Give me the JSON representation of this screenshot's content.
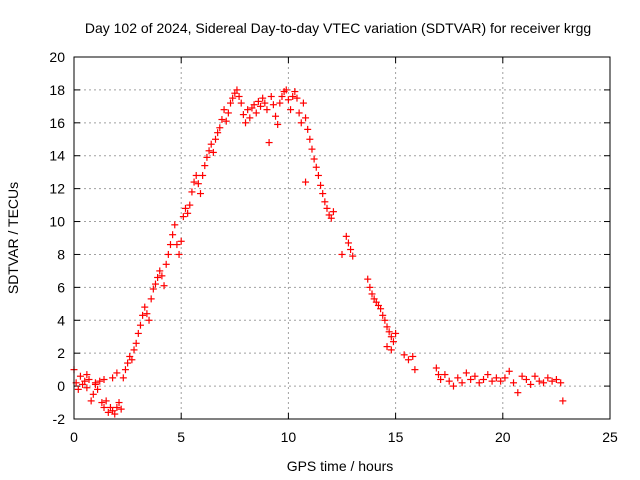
{
  "chart_data": {
    "type": "scatter",
    "title": "Day 102 of 2024, Sidereal Day-to-day VTEC variation (SDTVAR) for receiver krgg",
    "xlabel": "GPS time / hours",
    "ylabel": "SDTVAR / TECUs",
    "xlim": [
      0,
      25
    ],
    "ylim": [
      -2,
      20
    ],
    "xticks": [
      "0",
      "5",
      "10",
      "15",
      "20",
      "25"
    ],
    "yticks": [
      "-2",
      "0",
      "2",
      "4",
      "6",
      "8",
      "10",
      "12",
      "14",
      "16",
      "18",
      "20"
    ],
    "grid": true,
    "marker": "+",
    "series": [
      {
        "name": "SDTVAR",
        "color": "#ff0000",
        "points": [
          [
            0.0,
            1.0
          ],
          [
            0.1,
            0.2
          ],
          [
            0.2,
            -0.2
          ],
          [
            0.3,
            0.6
          ],
          [
            0.4,
            0.1
          ],
          [
            0.5,
            0.3
          ],
          [
            0.6,
            -0.1
          ],
          [
            0.7,
            0.4
          ],
          [
            0.8,
            -0.9
          ],
          [
            0.9,
            -0.5
          ],
          [
            1.0,
            0.1
          ],
          [
            1.1,
            -0.2
          ],
          [
            1.2,
            0.3
          ],
          [
            1.3,
            -1.0
          ],
          [
            1.4,
            -1.3
          ],
          [
            1.5,
            -0.9
          ],
          [
            1.6,
            -1.6
          ],
          [
            1.7,
            -1.3
          ],
          [
            1.8,
            -1.5
          ],
          [
            1.9,
            -1.7
          ],
          [
            2.0,
            -1.3
          ],
          [
            2.1,
            -1.0
          ],
          [
            2.2,
            -1.4
          ],
          [
            0.6,
            0.7
          ],
          [
            1.0,
            0.2
          ],
          [
            1.4,
            0.4
          ],
          [
            1.8,
            0.5
          ],
          [
            2.0,
            0.8
          ],
          [
            2.3,
            0.5
          ],
          [
            2.4,
            1.0
          ],
          [
            2.5,
            1.4
          ],
          [
            2.6,
            1.8
          ],
          [
            2.7,
            1.6
          ],
          [
            2.8,
            2.2
          ],
          [
            2.9,
            2.6
          ],
          [
            3.0,
            3.2
          ],
          [
            3.1,
            3.7
          ],
          [
            3.2,
            4.3
          ],
          [
            3.3,
            4.8
          ],
          [
            3.4,
            4.4
          ],
          [
            3.5,
            4.0
          ],
          [
            3.6,
            5.3
          ],
          [
            3.7,
            5.9
          ],
          [
            3.8,
            6.2
          ],
          [
            3.9,
            6.6
          ],
          [
            4.0,
            7.0
          ],
          [
            4.1,
            6.7
          ],
          [
            4.2,
            6.1
          ],
          [
            4.3,
            7.4
          ],
          [
            4.4,
            8.0
          ],
          [
            4.5,
            8.6
          ],
          [
            4.6,
            9.2
          ],
          [
            4.7,
            9.8
          ],
          [
            4.8,
            8.6
          ],
          [
            4.9,
            8.0
          ],
          [
            5.0,
            8.8
          ],
          [
            5.1,
            10.3
          ],
          [
            5.2,
            10.8
          ],
          [
            5.3,
            10.5
          ],
          [
            5.4,
            11.0
          ],
          [
            5.5,
            11.8
          ],
          [
            5.6,
            12.4
          ],
          [
            5.7,
            12.8
          ],
          [
            5.8,
            12.3
          ],
          [
            5.9,
            11.7
          ],
          [
            6.0,
            12.8
          ],
          [
            6.1,
            13.4
          ],
          [
            6.2,
            13.9
          ],
          [
            6.3,
            14.3
          ],
          [
            6.4,
            14.7
          ],
          [
            6.5,
            14.2
          ],
          [
            6.6,
            15.0
          ],
          [
            6.7,
            15.4
          ],
          [
            6.8,
            15.7
          ],
          [
            6.9,
            16.2
          ],
          [
            7.0,
            16.8
          ],
          [
            7.1,
            16.1
          ],
          [
            7.2,
            16.6
          ],
          [
            7.3,
            17.2
          ],
          [
            7.4,
            17.5
          ],
          [
            7.5,
            17.8
          ],
          [
            7.6,
            18.0
          ],
          [
            7.7,
            17.6
          ],
          [
            7.8,
            17.2
          ],
          [
            7.9,
            16.5
          ],
          [
            8.0,
            16.0
          ],
          [
            8.1,
            16.8
          ],
          [
            8.2,
            16.3
          ],
          [
            8.3,
            16.9
          ],
          [
            8.4,
            17.1
          ],
          [
            8.5,
            16.6
          ],
          [
            8.6,
            17.3
          ],
          [
            8.7,
            17.0
          ],
          [
            8.8,
            17.5
          ],
          [
            8.9,
            17.2
          ],
          [
            9.0,
            16.8
          ],
          [
            9.1,
            14.8
          ],
          [
            9.2,
            17.6
          ],
          [
            9.3,
            17.1
          ],
          [
            9.4,
            16.4
          ],
          [
            9.5,
            15.9
          ],
          [
            9.6,
            17.2
          ],
          [
            9.7,
            17.6
          ],
          [
            9.8,
            17.9
          ],
          [
            9.9,
            18.0
          ],
          [
            10.0,
            17.4
          ],
          [
            10.1,
            16.8
          ],
          [
            10.2,
            17.6
          ],
          [
            10.3,
            17.9
          ],
          [
            10.4,
            17.5
          ],
          [
            10.5,
            16.6
          ],
          [
            10.6,
            16.0
          ],
          [
            10.7,
            17.2
          ],
          [
            10.8,
            16.3
          ],
          [
            10.9,
            15.6
          ],
          [
            11.0,
            15.0
          ],
          [
            11.1,
            14.4
          ],
          [
            11.2,
            13.8
          ],
          [
            11.3,
            13.3
          ],
          [
            11.4,
            12.8
          ],
          [
            11.5,
            12.2
          ],
          [
            11.6,
            11.7
          ],
          [
            11.7,
            11.2
          ],
          [
            11.8,
            10.8
          ],
          [
            11.9,
            10.4
          ],
          [
            12.0,
            10.2
          ],
          [
            12.1,
            10.6
          ],
          [
            10.8,
            12.4
          ],
          [
            12.5,
            8.0
          ],
          [
            12.7,
            9.1
          ],
          [
            12.8,
            8.7
          ],
          [
            12.9,
            8.3
          ],
          [
            13.0,
            7.9
          ],
          [
            13.7,
            6.5
          ],
          [
            13.8,
            6.0
          ],
          [
            13.9,
            5.6
          ],
          [
            14.0,
            5.3
          ],
          [
            14.1,
            5.1
          ],
          [
            14.2,
            4.9
          ],
          [
            14.3,
            4.7
          ],
          [
            14.4,
            4.3
          ],
          [
            14.5,
            4.0
          ],
          [
            14.6,
            3.6
          ],
          [
            14.7,
            3.3
          ],
          [
            14.8,
            3.0
          ],
          [
            14.9,
            2.7
          ],
          [
            15.0,
            3.2
          ],
          [
            14.6,
            2.4
          ],
          [
            14.8,
            2.2
          ],
          [
            15.4,
            1.9
          ],
          [
            15.6,
            1.6
          ],
          [
            15.8,
            1.8
          ],
          [
            15.9,
            1.0
          ],
          [
            16.9,
            1.1
          ],
          [
            17.0,
            0.7
          ],
          [
            17.1,
            0.4
          ],
          [
            17.3,
            0.7
          ],
          [
            17.5,
            0.3
          ],
          [
            17.7,
            0.0
          ],
          [
            17.9,
            0.5
          ],
          [
            18.1,
            0.2
          ],
          [
            18.3,
            0.8
          ],
          [
            18.5,
            0.4
          ],
          [
            18.7,
            0.6
          ],
          [
            18.9,
            0.2
          ],
          [
            19.1,
            0.4
          ],
          [
            19.3,
            0.7
          ],
          [
            19.5,
            0.3
          ],
          [
            19.7,
            0.5
          ],
          [
            19.9,
            0.3
          ],
          [
            20.1,
            0.5
          ],
          [
            20.3,
            0.9
          ],
          [
            20.5,
            0.2
          ],
          [
            20.7,
            -0.4
          ],
          [
            20.9,
            0.6
          ],
          [
            21.1,
            0.4
          ],
          [
            21.3,
            0.1
          ],
          [
            21.5,
            0.6
          ],
          [
            21.7,
            0.3
          ],
          [
            21.9,
            0.2
          ],
          [
            22.1,
            0.5
          ],
          [
            22.3,
            0.3
          ],
          [
            22.5,
            0.4
          ],
          [
            22.7,
            0.2
          ],
          [
            22.8,
            -0.9
          ]
        ]
      }
    ]
  }
}
